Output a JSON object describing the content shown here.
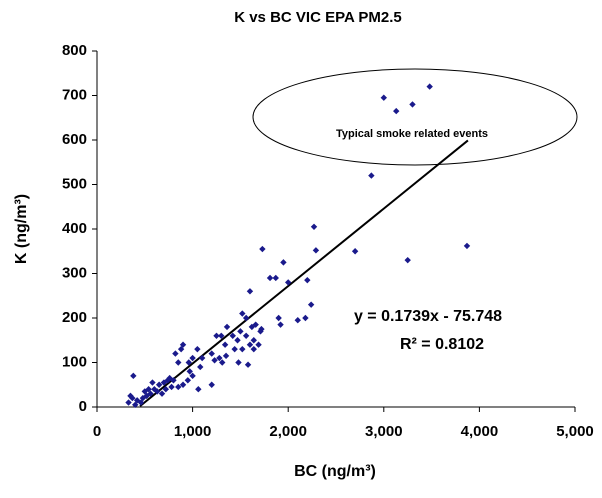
{
  "chart_data": {
    "type": "scatter",
    "title": "K vs BC VIC EPA PM2.5",
    "x_label": "BC (ng/m³)",
    "y_label": "K (ng/m³)",
    "annotations": [
      "Typical smoke related events",
      "y = 0.1739x - 75.748",
      "R² = 0.8102"
    ],
    "color": "#1a1a8c",
    "x": [
      3000,
      3130,
      3300,
      3480,
      2870,
      3250,
      3870,
      2700,
      2270,
      2290,
      2200,
      2240,
      2180,
      2100,
      2000,
      1950,
      1920,
      1870,
      1810,
      1730,
      1720,
      1660,
      1600,
      1640,
      1600,
      1560,
      1520,
      1500,
      1470,
      1440,
      1520,
      1480,
      1580,
      1560,
      1690,
      1640,
      1420,
      1360,
      1340,
      1310,
      1300,
      1280,
      1250,
      1230,
      1200,
      1350,
      1100,
      1080,
      1060,
      1050,
      1000,
      970,
      960,
      950,
      900,
      880,
      850,
      820,
      800,
      780,
      760,
      740,
      720,
      700,
      680,
      650,
      630,
      600,
      580,
      560,
      540,
      520,
      500,
      480,
      460,
      420,
      380,
      370,
      350,
      330,
      400,
      1900,
      1620,
      1710,
      1000,
      900,
      850,
      1200
    ],
    "y": [
      695,
      665,
      680,
      720,
      520,
      330,
      362,
      350,
      405,
      352,
      285,
      230,
      200,
      195,
      280,
      325,
      185,
      290,
      290,
      355,
      175,
      185,
      260,
      150,
      140,
      200,
      210,
      170,
      150,
      130,
      130,
      100,
      95,
      160,
      140,
      130,
      160,
      180,
      140,
      100,
      160,
      110,
      160,
      105,
      120,
      115,
      110,
      90,
      40,
      130,
      110,
      80,
      100,
      60,
      140,
      130,
      100,
      120,
      60,
      45,
      65,
      60,
      40,
      55,
      30,
      50,
      35,
      40,
      55,
      30,
      40,
      25,
      35,
      20,
      10,
      15,
      70,
      20,
      25,
      10,
      5,
      200,
      180,
      170,
      70,
      50,
      45,
      50
    ],
    "trendline": {
      "x": [
        450,
        3880
      ],
      "y": [
        2,
        599
      ]
    },
    "xlim": [
      0,
      5000
    ],
    "xticks": [
      0,
      {
        "value": 1000,
        "label": "1,000"
      },
      {
        "value": 2000,
        "label": "2,000"
      },
      {
        "value": 3000,
        "label": "3,000"
      },
      {
        "value": 4000,
        "label": "4,000"
      },
      {
        "value": 5000,
        "label": "5,000"
      }
    ],
    "ylim": [
      0,
      800
    ],
    "yticks": [
      0,
      100,
      200,
      300,
      400,
      500,
      600,
      700,
      800
    ],
    "grid": false
  }
}
